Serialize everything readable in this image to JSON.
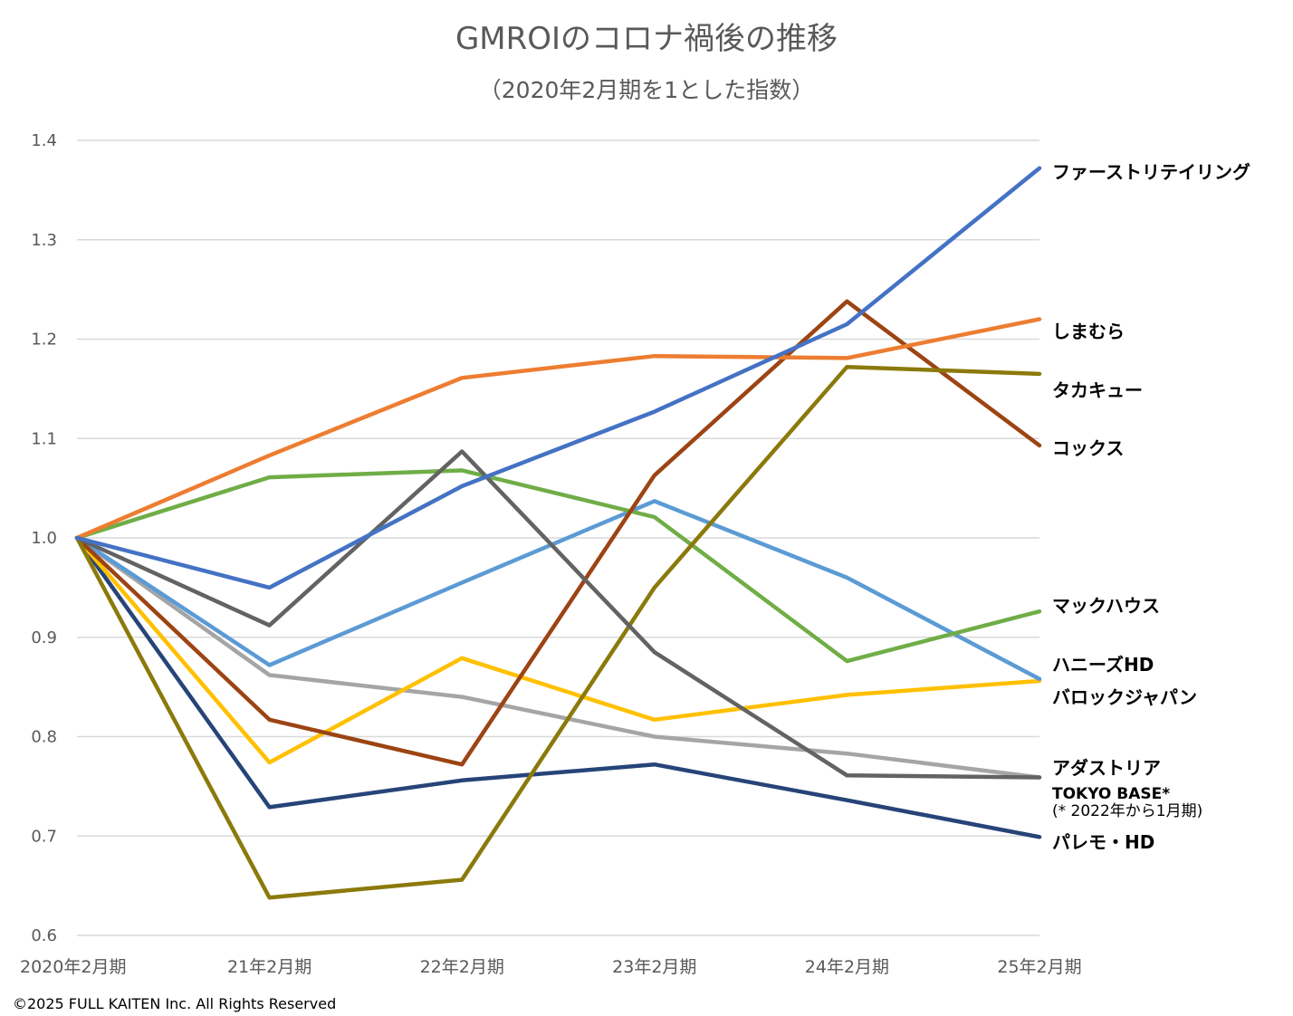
{
  "chart_data": {
    "type": "line",
    "title": "GMROIのコロナ禍後の推移",
    "subtitle": "（2020年2月期を1とした指数）",
    "categories": [
      "2020年2月期",
      "21年2月期",
      "22年2月期",
      "23年2月期",
      "24年2月期",
      "25年2月期"
    ],
    "ylim": [
      0.6,
      1.4
    ],
    "yticks": [
      "0.6",
      "0.7",
      "0.8",
      "0.9",
      "1.0",
      "1.1",
      "1.2",
      "1.3",
      "1.4"
    ],
    "grid": true,
    "legend": "right-end labels",
    "series": [
      {
        "name": "ファーストリテイリング",
        "color": "#4472c4",
        "values": [
          1.0,
          0.95,
          1.052,
          1.127,
          1.215,
          1.372
        ]
      },
      {
        "name": "しまむら",
        "color": "#ed7d31",
        "values": [
          1.0,
          1.083,
          1.161,
          1.183,
          1.181,
          1.22
        ]
      },
      {
        "name": "タカキュー",
        "color": "#8b7a0b",
        "values": [
          1.0,
          0.638,
          0.656,
          0.95,
          1.172,
          1.165
        ]
      },
      {
        "name": "コックス",
        "color": "#9c4413",
        "values": [
          1.0,
          0.817,
          0.772,
          1.063,
          1.238,
          1.093
        ]
      },
      {
        "name": "マックハウス",
        "color": "#70ad47",
        "values": [
          1.0,
          1.061,
          1.068,
          1.021,
          0.876,
          0.926
        ]
      },
      {
        "name": "ハニーズHD",
        "color": "#5b9bd5",
        "values": [
          1.0,
          0.872,
          0.955,
          1.037,
          0.96,
          0.858
        ]
      },
      {
        "name": "バロックジャパン",
        "color": "#ffc000",
        "values": [
          1.0,
          0.774,
          0.879,
          0.817,
          0.842,
          0.856
        ]
      },
      {
        "name": "アダストリア",
        "color": "#a5a5a5",
        "values": [
          1.0,
          0.862,
          0.84,
          0.8,
          0.783,
          0.759
        ]
      },
      {
        "name": "TOKYO BASE*",
        "color": "#636363",
        "values": [
          1.0,
          0.912,
          1.087,
          0.885,
          0.761,
          0.759
        ]
      },
      {
        "name": "パレモ・HD",
        "color": "#264478",
        "values": [
          1.0,
          0.729,
          0.756,
          0.772,
          0.736,
          0.699
        ]
      }
    ],
    "note": "(* 2022年から1月期)",
    "copyright": "©2025 FULL KAITEN Inc. All Rights Reserved"
  }
}
